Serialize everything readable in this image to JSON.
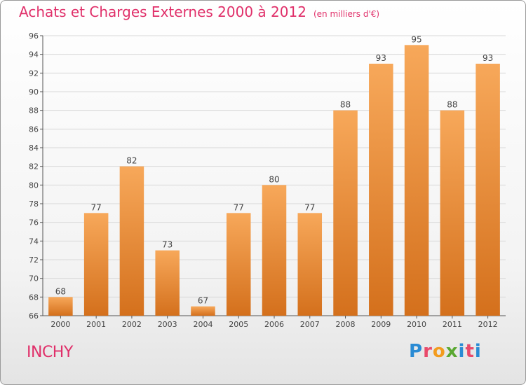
{
  "header": {
    "title": "Achats et Charges Externes 2000 à 2012",
    "subtitle": "(en milliers d'€)"
  },
  "footer": {
    "commune": "INCHY",
    "logo_text": "Proxiti"
  },
  "colors": {
    "title": "#e0306a",
    "bar_top": "#f7a85a",
    "bar_bottom": "#d4701c",
    "axis": "#555555"
  },
  "chart_data": {
    "type": "bar",
    "title": "Achats et Charges Externes 2000 à 2012",
    "subtitle": "(en milliers d'€)",
    "categories": [
      "2000",
      "2001",
      "2002",
      "2003",
      "2004",
      "2005",
      "2006",
      "2007",
      "2008",
      "2009",
      "2010",
      "2011",
      "2012"
    ],
    "values": [
      68,
      77,
      82,
      73,
      67,
      77,
      80,
      77,
      88,
      93,
      95,
      88,
      93
    ],
    "ylim": [
      66,
      96
    ],
    "yticks": [
      66,
      68,
      70,
      72,
      74,
      76,
      78,
      80,
      82,
      84,
      86,
      88,
      90,
      92,
      94,
      96
    ],
    "grid": true,
    "data_labels": true
  }
}
